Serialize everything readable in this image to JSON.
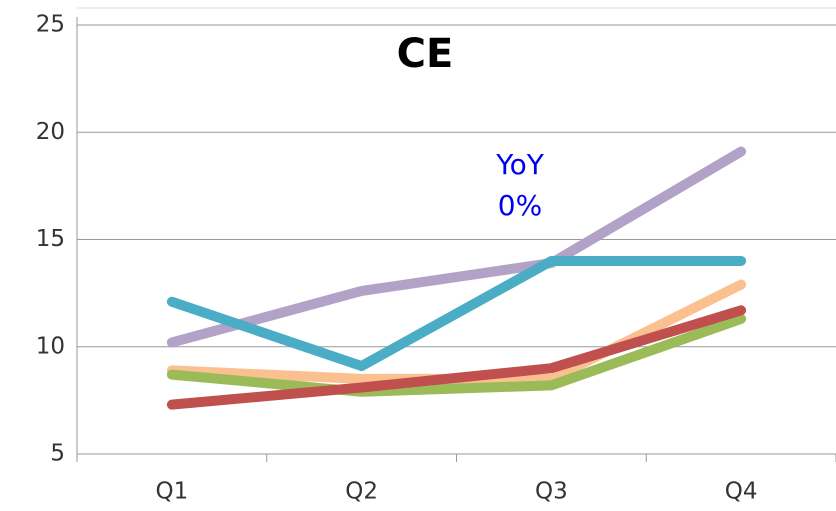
{
  "chart_data": {
    "type": "line",
    "title": "CE",
    "annotation": [
      "YoY",
      "0%"
    ],
    "categories": [
      "Q1",
      "Q2",
      "Q3",
      "Q4"
    ],
    "series": [
      {
        "color": "#b3a2c7",
        "values": [
          10.2,
          12.6,
          13.9,
          19.1
        ]
      },
      {
        "color": "#4bacc6",
        "values": [
          12.1,
          9.1,
          14.0,
          14.0
        ]
      },
      {
        "color": "#fac090",
        "values": [
          8.9,
          8.5,
          8.5,
          12.9
        ]
      },
      {
        "color": "#9bbb59",
        "values": [
          8.7,
          7.9,
          8.2,
          11.3
        ]
      },
      {
        "color": "#c0504d",
        "values": [
          7.3,
          8.1,
          9.0,
          11.7
        ]
      }
    ],
    "ylim": [
      5,
      25
    ],
    "yticks": [
      5,
      10,
      15,
      20,
      25
    ],
    "grid": true
  }
}
